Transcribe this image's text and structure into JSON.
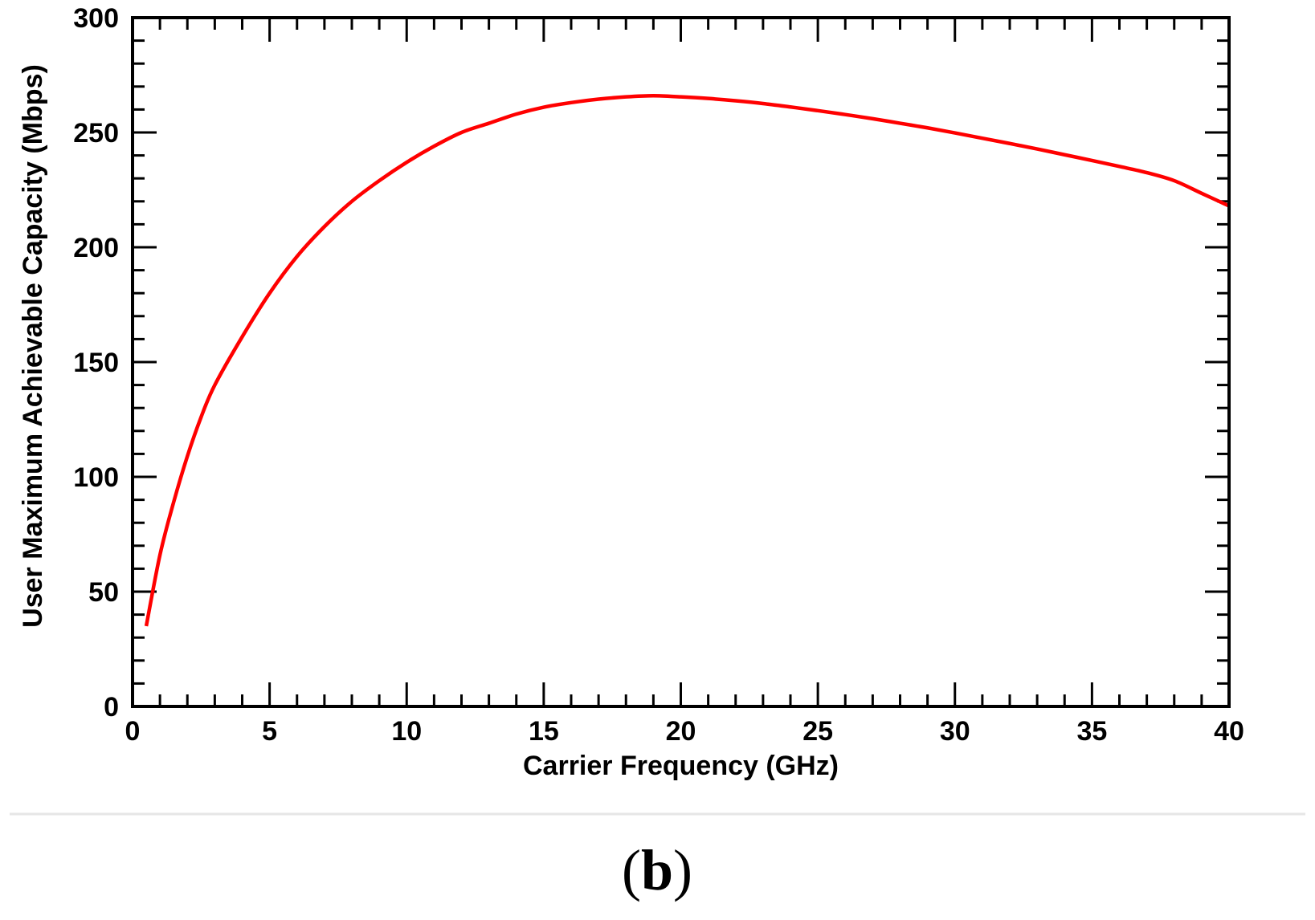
{
  "chart_data": {
    "type": "line",
    "title": "",
    "panel_label": "(b)",
    "panel_label_parts": {
      "open": "(",
      "letter": "b",
      "close": ")"
    },
    "xlabel": "Carrier Frequency (GHz)",
    "ylabel": "User Maximum Achievable Capacity (Mbps)",
    "xlim": [
      0,
      40
    ],
    "ylim": [
      0,
      300
    ],
    "xticks": [
      0,
      5,
      10,
      15,
      20,
      25,
      30,
      35,
      40
    ],
    "yticks": [
      0,
      50,
      100,
      150,
      200,
      250,
      300
    ],
    "x_minor_step": 1,
    "y_minor_step": 10,
    "grid": false,
    "legend": "none",
    "colors": {
      "series": "#ff0000",
      "axes": "#000000"
    },
    "series": [
      {
        "x": [
          0.5,
          1,
          1.5,
          2,
          2.5,
          3,
          4,
          5,
          6,
          7,
          8,
          9,
          10,
          11,
          12,
          13,
          14,
          15,
          16,
          17,
          18,
          19,
          20,
          21,
          22,
          23,
          24,
          25,
          26,
          27,
          28,
          29,
          30,
          31,
          32,
          33,
          34,
          35,
          36,
          37,
          38,
          39,
          40
        ],
        "y": [
          35,
          66,
          89,
          109,
          126,
          140,
          161,
          180,
          196,
          209,
          220,
          229,
          237,
          244,
          250,
          254,
          258,
          261,
          263,
          264.5,
          265.5,
          266,
          265.5,
          264.8,
          263.8,
          262.6,
          261.1,
          259.5,
          257.8,
          256,
          254,
          252,
          249.8,
          247.5,
          245.2,
          242.8,
          240.3,
          237.8,
          235.2,
          232.5,
          229,
          223.5,
          218
        ]
      }
    ]
  }
}
